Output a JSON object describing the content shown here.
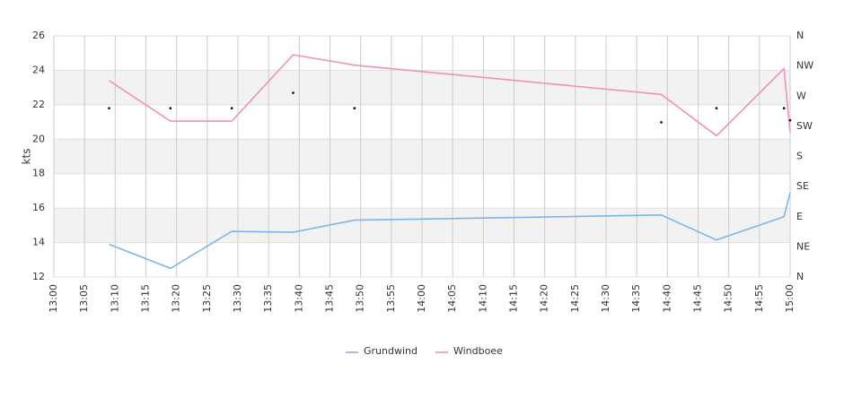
{
  "chart_data": {
    "type": "line",
    "y_label": "kts",
    "x": [
      "13:09",
      "13:19",
      "13:29",
      "13:39",
      "13:49",
      "14:39",
      "14:48",
      "14:59",
      "15:00"
    ],
    "xlim": [
      "13:00",
      "15:00"
    ],
    "xticks": [
      "13:00",
      "13:05",
      "13:10",
      "13:15",
      "13:20",
      "13:25",
      "13:30",
      "13:35",
      "13:40",
      "13:45",
      "13:50",
      "13:55",
      "14:00",
      "14:05",
      "14:10",
      "14:15",
      "14:20",
      "14:25",
      "14:30",
      "14:35",
      "14:40",
      "14:45",
      "14:50",
      "14:55",
      "15:00"
    ],
    "ylim": [
      12,
      26
    ],
    "yticks": [
      12,
      14,
      16,
      18,
      20,
      22,
      24,
      26
    ],
    "y2lim": [
      0,
      360
    ],
    "y2ticks": [
      {
        "value": 0,
        "label": "N"
      },
      {
        "value": 45,
        "label": "NE"
      },
      {
        "value": 90,
        "label": "E"
      },
      {
        "value": 135,
        "label": "SE"
      },
      {
        "value": 180,
        "label": "S"
      },
      {
        "value": 225,
        "label": "SW"
      },
      {
        "value": 270,
        "label": "W"
      },
      {
        "value": 315,
        "label": "NW"
      },
      {
        "value": 360,
        "label": "N"
      }
    ],
    "grid": true,
    "series": [
      {
        "name": "Grundwind",
        "color": "#7cb5ec",
        "values": [
          13.9,
          12.5,
          14.65,
          14.6,
          15.3,
          15.6,
          14.15,
          15.5,
          16.9
        ]
      },
      {
        "name": "Windboee",
        "color": "#f28fbd",
        "values": [
          23.4,
          21.05,
          21.05,
          24.9,
          24.3,
          22.6,
          20.2,
          24.1,
          20.4
        ]
      }
    ],
    "direction": {
      "color": "#000000",
      "axis": "y2",
      "values": [
        252,
        252,
        252,
        275,
        252,
        231,
        252,
        252,
        234
      ]
    },
    "legend": "bottom"
  }
}
